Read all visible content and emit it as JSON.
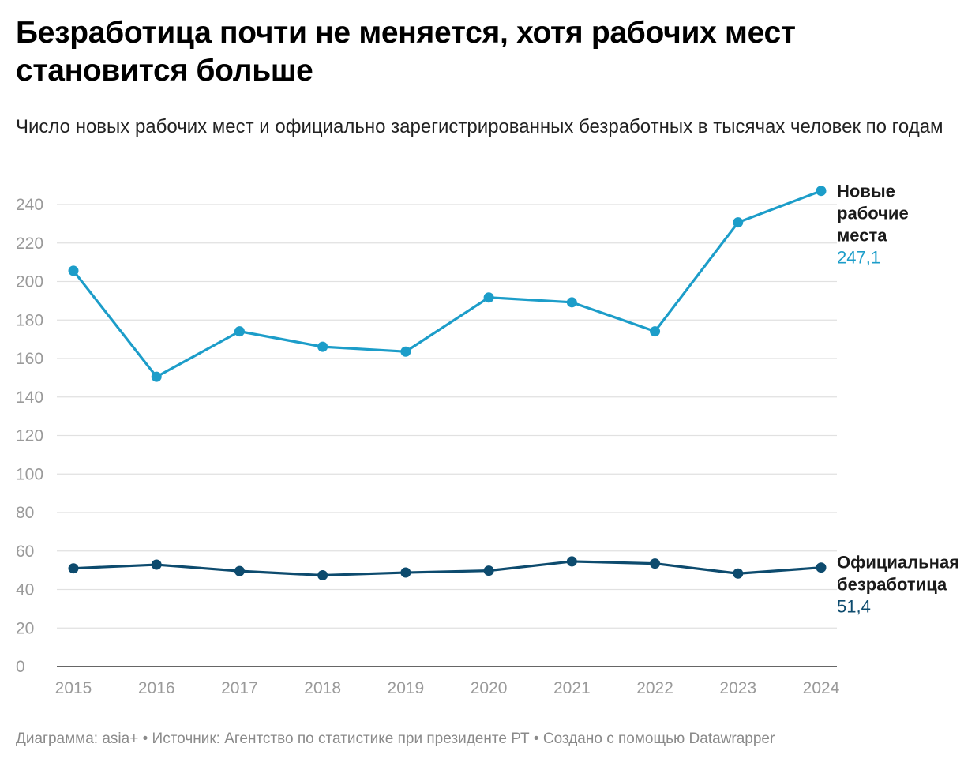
{
  "title": "Безработица почти не меняется, хотя рабочих мест становится больше",
  "subtitle": "Число новых рабочих мест и официально зарегистрированных безработных в тысячах человек по годам",
  "footer": {
    "chart_by": "Диаграмма: asia+",
    "source": "Источник: Агентство по статистике при президенте РТ",
    "made_with": "Создано с помощью Datawrapper",
    "separator": "•"
  },
  "colors": {
    "new_jobs": "#1c9dc9",
    "unemployment": "#0d4b6e",
    "grid": "#e1e1e1",
    "axis": "#333333"
  },
  "chart_data": {
    "type": "line",
    "x": [
      "2015",
      "2016",
      "2017",
      "2018",
      "2019",
      "2020",
      "2021",
      "2022",
      "2023",
      "2024"
    ],
    "ylim": [
      0,
      250
    ],
    "yticks": [
      0,
      20,
      40,
      60,
      80,
      100,
      120,
      140,
      160,
      180,
      200,
      220,
      240
    ],
    "series": [
      {
        "name_lines": [
          "Новые",
          "рабочие",
          "места"
        ],
        "values": [
          205.6,
          150.5,
          174.1,
          166.1,
          163.6,
          191.7,
          189.2,
          174.1,
          230.7,
          247.1
        ],
        "last_label": "247,1",
        "color": "#1c9dc9"
      },
      {
        "name_lines": [
          "Официальная",
          "безработица"
        ],
        "values": [
          51.0,
          52.9,
          49.6,
          47.4,
          48.8,
          49.8,
          54.6,
          53.5,
          48.3,
          51.4
        ],
        "last_label": "51,4",
        "color": "#0d4b6e"
      }
    ]
  }
}
